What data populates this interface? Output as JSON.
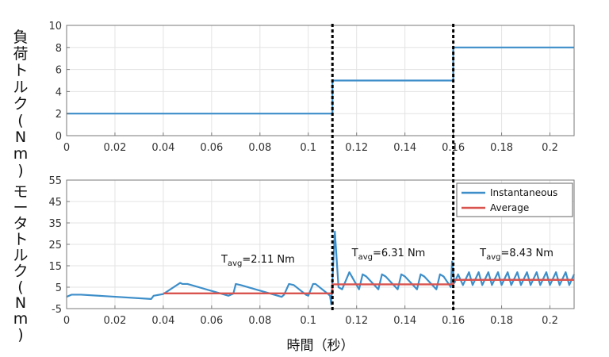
{
  "chart_data": [
    {
      "type": "line",
      "name": "load-torque-panel",
      "ylabel": "負荷トルク(Nm)",
      "xlabel": "",
      "xlim": [
        0,
        0.21
      ],
      "ylim": [
        0,
        10
      ],
      "xticks": [
        "0",
        "0.02",
        "0.04",
        "0.06",
        "0.08",
        "0.1",
        "0.12",
        "0.14",
        "0.16",
        "0.18",
        "0.2"
      ],
      "yticks": [
        "0",
        "2",
        "4",
        "6",
        "8",
        "10"
      ],
      "grid": true,
      "series": [
        {
          "color": "#3d8ec9",
          "x": [
            0,
            0.11,
            0.11,
            0.16,
            0.16,
            0.21
          ],
          "y": [
            2,
            2,
            5,
            5,
            8,
            8
          ]
        }
      ]
    },
    {
      "type": "line",
      "name": "motor-torque-panel",
      "ylabel": "モータトルク(Nm)",
      "xlabel": "時間（秒）",
      "xlim": [
        0,
        0.21
      ],
      "ylim": [
        -5,
        55
      ],
      "xticks": [
        "0",
        "0.02",
        "0.04",
        "0.06",
        "0.08",
        "0.1",
        "0.12",
        "0.14",
        "0.16",
        "0.18",
        "0.2"
      ],
      "yticks": [
        "-5",
        "5",
        "15",
        "25",
        "35",
        "45",
        "55"
      ],
      "grid": true,
      "legend_position": "top-right",
      "series": [
        {
          "name": "Instantaneous",
          "color": "#3d8ec9",
          "x": [
            0,
            0.002,
            0.006,
            0.035,
            0.036,
            0.04,
            0.047,
            0.048,
            0.05,
            0.067,
            0.069,
            0.07,
            0.072,
            0.089,
            0.09,
            0.092,
            0.094,
            0.099,
            0.1,
            0.102,
            0.103,
            0.108,
            0.109,
            0.1095,
            0.111,
            0.1125,
            0.114,
            0.117,
            0.121,
            0.1225,
            0.124,
            0.129,
            0.1305,
            0.132,
            0.137,
            0.1385,
            0.14,
            0.145,
            0.1465,
            0.148,
            0.153,
            0.1545,
            0.156,
            0.159,
            0.1595,
            0.1605,
            0.162,
            0.164,
            0.1665,
            0.168,
            0.1705,
            0.172,
            0.1745,
            0.176,
            0.1785,
            0.18,
            0.1825,
            0.184,
            0.1865,
            0.188,
            0.1905,
            0.192,
            0.1945,
            0.196,
            0.1985,
            0.2,
            0.2025,
            0.204,
            0.2065,
            0.208,
            0.21
          ],
          "y": [
            0.5,
            1.5,
            1.5,
            -0.5,
            1,
            1.8,
            7,
            6.5,
            6.5,
            1,
            2,
            6.5,
            6,
            0.5,
            1.5,
            6.5,
            6,
            1.5,
            1,
            6.5,
            6.5,
            2,
            1,
            -3,
            31,
            5,
            4,
            12,
            4,
            11,
            10,
            4,
            11,
            10,
            4,
            11,
            10,
            4,
            11,
            10,
            4,
            11,
            10,
            5,
            17,
            7,
            11,
            6,
            12,
            6,
            12,
            6,
            12,
            6,
            12,
            6,
            12,
            6,
            12,
            6,
            12,
            6,
            12,
            6,
            12,
            6,
            12,
            6,
            12,
            6,
            11
          ]
        },
        {
          "name": "Average",
          "color": "#d9534f",
          "x": [
            0.04,
            0.11,
            0.11,
            0.16,
            0.16,
            0.21
          ],
          "y": [
            2.11,
            2.11,
            6.31,
            6.31,
            8.43,
            8.43
          ]
        }
      ],
      "annotations": [
        {
          "label": "T",
          "sub": "avg",
          "text": "=2.11 Nm",
          "x": 0.064,
          "y": 16.5
        },
        {
          "label": "T",
          "sub": "avg",
          "text": "=6.31 Nm",
          "x": 0.118,
          "y": 19.5
        },
        {
          "label": "T",
          "sub": "avg",
          "text": "=8.43 Nm",
          "x": 0.171,
          "y": 19.5
        }
      ]
    }
  ],
  "markers": {
    "x": [
      0.11,
      0.16
    ],
    "color": "#000000"
  }
}
